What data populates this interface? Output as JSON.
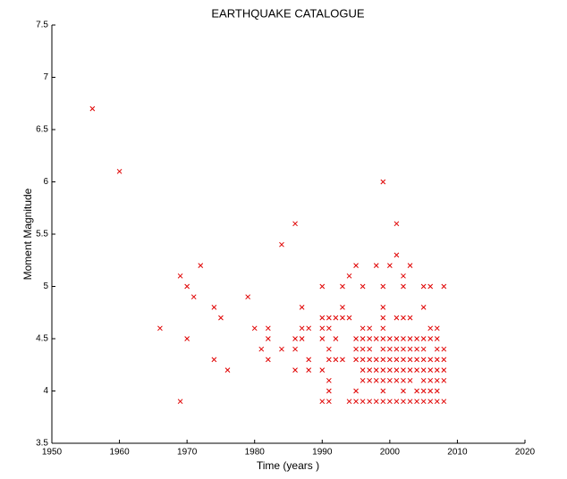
{
  "chart_data": {
    "type": "scatter",
    "title": "EARTHQUAKE CATALOGUE",
    "x_label": "Time (years )",
    "y_label": "Moment Magnitude",
    "xlim": [
      1950,
      2020
    ],
    "ylim": [
      3.5,
      7.5
    ],
    "xticks": [
      1950,
      1960,
      1970,
      1980,
      1990,
      2000,
      2010,
      2020
    ],
    "yticks": [
      3.5,
      4,
      4.5,
      5,
      5.5,
      6,
      6.5,
      7,
      7.5
    ],
    "color": "#e00000",
    "x": [
      1956,
      1960,
      1966,
      1969,
      1969,
      1970,
      1970,
      1971,
      1972,
      1974,
      1974,
      1975,
      1976,
      1979,
      1980,
      1981,
      1982,
      1982,
      1982,
      1984,
      1984,
      1986,
      1986,
      1986,
      1986,
      1987,
      1987,
      1987,
      1988,
      1988,
      1988,
      1990,
      1990,
      1990,
      1990,
      1990,
      1990,
      1991,
      1991,
      1991,
      1991,
      1991,
      1991,
      1991,
      1992,
      1992,
      1992,
      1993,
      1993,
      1993,
      1993,
      1994,
      1994,
      1994,
      1995,
      1995,
      1995,
      1995,
      1995,
      1995,
      1996,
      1996,
      1996,
      1996,
      1996,
      1996,
      1996,
      1996,
      1997,
      1997,
      1997,
      1997,
      1997,
      1997,
      1997,
      1998,
      1998,
      1998,
      1998,
      1998,
      1998,
      1999,
      1999,
      1999,
      1999,
      1999,
      1999,
      1999,
      1999,
      1999,
      1999,
      1999,
      1999,
      2000,
      2000,
      2000,
      2000,
      2000,
      2000,
      2000,
      2001,
      2001,
      2001,
      2001,
      2001,
      2001,
      2001,
      2001,
      2001,
      2002,
      2002,
      2002,
      2002,
      2002,
      2002,
      2002,
      2002,
      2002,
      2002,
      2003,
      2003,
      2003,
      2003,
      2003,
      2003,
      2003,
      2003,
      2004,
      2004,
      2004,
      2004,
      2004,
      2004,
      2005,
      2005,
      2005,
      2005,
      2005,
      2005,
      2005,
      2005,
      2005,
      2006,
      2006,
      2006,
      2006,
      2006,
      2006,
      2006,
      2006,
      2007,
      2007,
      2007,
      2007,
      2007,
      2007,
      2007,
      2007,
      2008,
      2008,
      2008,
      2008,
      2008,
      2008
    ],
    "y": [
      6.7,
      6.1,
      4.6,
      5.1,
      3.9,
      5.0,
      4.5,
      4.9,
      5.2,
      4.8,
      4.3,
      4.7,
      4.2,
      4.9,
      4.6,
      4.4,
      4.6,
      4.5,
      4.3,
      4.4,
      5.4,
      5.6,
      4.4,
      4.5,
      4.2,
      4.8,
      4.6,
      4.5,
      4.6,
      4.3,
      4.2,
      5.0,
      4.7,
      4.6,
      4.5,
      4.2,
      3.9,
      4.7,
      4.6,
      4.4,
      4.3,
      4.1,
      4.0,
      3.9,
      4.7,
      4.5,
      4.3,
      5.0,
      4.8,
      4.7,
      4.3,
      5.1,
      4.7,
      3.9,
      5.2,
      4.5,
      4.4,
      4.3,
      4.0,
      3.9,
      5.0,
      4.6,
      4.5,
      4.4,
      4.3,
      4.2,
      4.1,
      3.9,
      4.6,
      4.5,
      4.4,
      4.3,
      4.2,
      4.1,
      3.9,
      5.2,
      4.5,
      4.3,
      4.2,
      4.1,
      3.9,
      6.0,
      5.0,
      4.8,
      4.7,
      4.6,
      4.5,
      4.4,
      4.3,
      4.2,
      4.1,
      4.0,
      3.9,
      5.2,
      4.5,
      4.4,
      4.3,
      4.2,
      4.1,
      3.9,
      5.6,
      5.3,
      4.7,
      4.5,
      4.4,
      4.3,
      4.2,
      4.1,
      3.9,
      5.1,
      5.0,
      4.7,
      4.5,
      4.4,
      4.3,
      4.2,
      4.1,
      4.0,
      3.9,
      5.2,
      4.7,
      4.5,
      4.4,
      4.3,
      4.2,
      4.1,
      3.9,
      4.5,
      4.4,
      4.3,
      4.2,
      4.0,
      3.9,
      5.0,
      4.8,
      4.5,
      4.4,
      4.3,
      4.2,
      4.1,
      4.0,
      3.9,
      5.0,
      4.6,
      4.5,
      4.3,
      4.2,
      4.1,
      4.0,
      3.9,
      4.6,
      4.5,
      4.4,
      4.3,
      4.2,
      4.1,
      4.0,
      3.9,
      5.0,
      4.4,
      4.3,
      4.2,
      4.1,
      3.9
    ]
  }
}
